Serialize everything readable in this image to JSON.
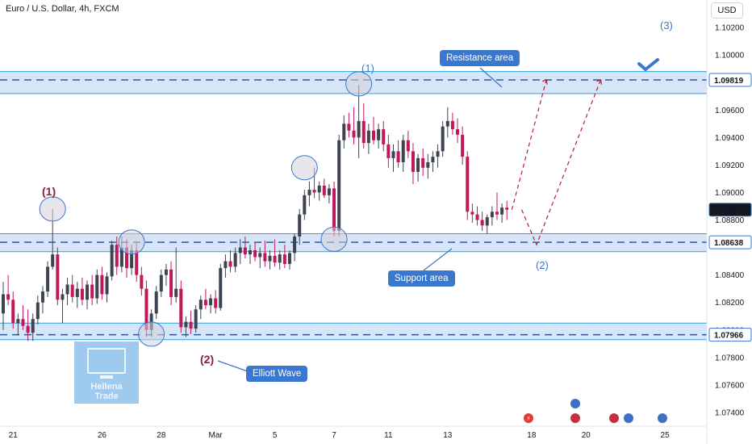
{
  "header": {
    "title": "Euro / U.S. Dollar, 4h, FXCM",
    "currency_button": "USD"
  },
  "colors": {
    "bull": "#26a69a",
    "bear": "#ef5350",
    "candle_up": "#3d4451",
    "candle_down": "#c2185b",
    "zone_fill": "#cfe2f7",
    "zone_line": "#2aa2d6",
    "dash": "#2d5a97",
    "projection": "#b71c3c",
    "callout": "#3a78cf",
    "price_tag": "#3a78cf"
  },
  "chart_data": {
    "type": "candlestick",
    "symbol": "EURUSD",
    "timeframe": "4h",
    "ylim": [
      1.073,
      1.104
    ],
    "y_ticks": [
      "1.10200",
      "1.10000",
      "1.09600",
      "1.09400",
      "1.09200",
      "1.09000",
      "1.08800",
      "1.08400",
      "1.08200",
      "1.08000",
      "1.07800",
      "1.07600",
      "1.07400"
    ],
    "x_ticks": [
      "21",
      "26",
      "28",
      "Mar",
      "5",
      "7",
      "11",
      "13",
      "18",
      "20",
      "25"
    ],
    "price_tags": [
      {
        "value": "1.09819",
        "style": "outline"
      },
      {
        "value": "1.08875",
        "style": "dark"
      },
      {
        "value": "1.08638",
        "style": "outline"
      },
      {
        "value": "1.07966",
        "style": "outline"
      }
    ],
    "zones": [
      {
        "name": "resistance",
        "low": 1.0972,
        "high": 1.0988,
        "level": 1.09819
      },
      {
        "name": "support",
        "low": 1.0857,
        "high": 1.087,
        "level": 1.08638
      },
      {
        "name": "lower",
        "low": 1.0793,
        "high": 1.0805,
        "level": 1.07966
      }
    ],
    "candles": [
      [
        1.0812,
        1.0835,
        1.08,
        1.0826
      ],
      [
        1.0826,
        1.084,
        1.0818,
        1.0822
      ],
      [
        1.0822,
        1.0828,
        1.0801,
        1.0805
      ],
      [
        1.0805,
        1.0812,
        1.0796,
        1.0808
      ],
      [
        1.0808,
        1.0818,
        1.08,
        1.0803
      ],
      [
        1.0803,
        1.0815,
        1.0792,
        1.0798
      ],
      [
        1.0798,
        1.0812,
        1.0792,
        1.0808
      ],
      [
        1.0808,
        1.0825,
        1.0804,
        1.082
      ],
      [
        1.082,
        1.0832,
        1.0812,
        1.0828
      ],
      [
        1.0828,
        1.085,
        1.0824,
        1.0846
      ],
      [
        1.0846,
        1.0888,
        1.0844,
        1.0855
      ],
      [
        1.0855,
        1.086,
        1.0818,
        1.0822
      ],
      [
        1.0822,
        1.083,
        1.0805,
        1.0826
      ],
      [
        1.0826,
        1.0838,
        1.0818,
        1.0833
      ],
      [
        1.0833,
        1.084,
        1.082,
        1.0824
      ],
      [
        1.0824,
        1.0835,
        1.0816,
        1.083
      ],
      [
        1.083,
        1.0838,
        1.0818,
        1.0822
      ],
      [
        1.0822,
        1.0836,
        1.0815,
        1.0833
      ],
      [
        1.0833,
        1.084,
        1.0818,
        1.0823
      ],
      [
        1.0823,
        1.0844,
        1.0819,
        1.084
      ],
      [
        1.084,
        1.0846,
        1.0822,
        1.0826
      ],
      [
        1.0826,
        1.0842,
        1.082,
        1.0839
      ],
      [
        1.0839,
        1.0865,
        1.0836,
        1.0862
      ],
      [
        1.0862,
        1.0868,
        1.084,
        1.0846
      ],
      [
        1.0846,
        1.0868,
        1.0842,
        1.086
      ],
      [
        1.086,
        1.0866,
        1.0838,
        1.0845
      ],
      [
        1.0845,
        1.0862,
        1.084,
        1.0858
      ],
      [
        1.0858,
        1.0864,
        1.0835,
        1.084
      ],
      [
        1.084,
        1.0846,
        1.0825,
        1.083
      ],
      [
        1.083,
        1.0836,
        1.0795,
        1.08
      ],
      [
        1.08,
        1.0815,
        1.0795,
        1.0812
      ],
      [
        1.0812,
        1.0832,
        1.0808,
        1.0828
      ],
      [
        1.0828,
        1.0844,
        1.0824,
        1.084
      ],
      [
        1.084,
        1.0848,
        1.0832,
        1.0844
      ],
      [
        1.0844,
        1.085,
        1.0818,
        1.0824
      ],
      [
        1.0824,
        1.086,
        1.082,
        1.083
      ],
      [
        1.083,
        1.0836,
        1.0798,
        1.0802
      ],
      [
        1.0802,
        1.081,
        1.0795,
        1.0806
      ],
      [
        1.0806,
        1.0814,
        1.0797,
        1.0801
      ],
      [
        1.0801,
        1.0818,
        1.0798,
        1.0815
      ],
      [
        1.0815,
        1.0825,
        1.0808,
        1.0822
      ],
      [
        1.0822,
        1.083,
        1.0815,
        1.0818
      ],
      [
        1.0818,
        1.0826,
        1.0812,
        1.0823
      ],
      [
        1.0823,
        1.0829,
        1.0812,
        1.0816
      ],
      [
        1.0816,
        1.0848,
        1.0814,
        1.0845
      ],
      [
        1.0845,
        1.0855,
        1.0838,
        1.085
      ],
      [
        1.085,
        1.0858,
        1.0842,
        1.0846
      ],
      [
        1.0846,
        1.086,
        1.0842,
        1.0856
      ],
      [
        1.0856,
        1.0866,
        1.0848,
        1.086
      ],
      [
        1.086,
        1.0868,
        1.0852,
        1.0855
      ],
      [
        1.0855,
        1.0862,
        1.0848,
        1.0858
      ],
      [
        1.0858,
        1.0864,
        1.085,
        1.0853
      ],
      [
        1.0853,
        1.086,
        1.0845,
        1.0856
      ],
      [
        1.0856,
        1.0865,
        1.0846,
        1.085
      ],
      [
        1.085,
        1.0858,
        1.0844,
        1.0854
      ],
      [
        1.0854,
        1.0866,
        1.0846,
        1.0849
      ],
      [
        1.0849,
        1.0858,
        1.0844,
        1.0855
      ],
      [
        1.0855,
        1.0862,
        1.0845,
        1.0848
      ],
      [
        1.0848,
        1.0858,
        1.0844,
        1.0856
      ],
      [
        1.0856,
        1.087,
        1.085,
        1.0868
      ],
      [
        1.0868,
        1.0888,
        1.0862,
        1.0884
      ],
      [
        1.0884,
        1.0902,
        1.088,
        1.0898
      ],
      [
        1.0898,
        1.0908,
        1.089,
        1.0902
      ],
      [
        1.0902,
        1.0918,
        1.0896,
        1.09
      ],
      [
        1.09,
        1.0908,
        1.0894,
        1.0905
      ],
      [
        1.0905,
        1.091,
        1.0896,
        1.0898
      ],
      [
        1.0898,
        1.0906,
        1.0892,
        1.0903
      ],
      [
        1.0903,
        1.0908,
        1.0868,
        1.0872
      ],
      [
        1.0872,
        1.0942,
        1.0868,
        1.0938
      ],
      [
        1.0938,
        1.0956,
        1.0932,
        1.095
      ],
      [
        1.095,
        1.0958,
        1.094,
        1.0945
      ],
      [
        1.0945,
        1.0962,
        1.0935,
        1.094
      ],
      [
        1.094,
        1.0978,
        1.0925,
        1.0952
      ],
      [
        1.0952,
        1.0965,
        1.0932,
        1.0936
      ],
      [
        1.0936,
        1.095,
        1.0928,
        1.0945
      ],
      [
        1.0945,
        1.0955,
        1.0935,
        1.0938
      ],
      [
        1.0938,
        1.095,
        1.0932,
        1.0946
      ],
      [
        1.0946,
        1.0952,
        1.093,
        1.0935
      ],
      [
        1.0935,
        1.0942,
        1.0918,
        1.0925
      ],
      [
        1.0925,
        1.0935,
        1.0915,
        1.093
      ],
      [
        1.093,
        1.0938,
        1.0918,
        1.0922
      ],
      [
        1.0922,
        1.0942,
        1.0915,
        1.0938
      ],
      [
        1.0938,
        1.0945,
        1.0925,
        1.093
      ],
      [
        1.093,
        1.0936,
        1.0906,
        1.0915
      ],
      [
        1.0915,
        1.0928,
        1.0908,
        1.0925
      ],
      [
        1.0925,
        1.0932,
        1.0912,
        1.0918
      ],
      [
        1.0918,
        1.0928,
        1.091,
        1.0922
      ],
      [
        1.0922,
        1.093,
        1.0915,
        1.0926
      ],
      [
        1.0926,
        1.0935,
        1.0918,
        1.093
      ],
      [
        1.093,
        1.0952,
        1.0926,
        1.0948
      ],
      [
        1.0948,
        1.0962,
        1.094,
        1.0952
      ],
      [
        1.0952,
        1.0958,
        1.0942,
        1.0946
      ],
      [
        1.0946,
        1.0954,
        1.0936,
        1.0942
      ],
      [
        1.0942,
        1.0948,
        1.092,
        1.0926
      ],
      [
        1.0926,
        1.093,
        1.088,
        1.0886
      ],
      [
        1.0886,
        1.0892,
        1.0878,
        1.0884
      ],
      [
        1.0884,
        1.089,
        1.0876,
        1.088
      ],
      [
        1.088,
        1.0886,
        1.0872,
        1.0876
      ],
      [
        1.0876,
        1.0884,
        1.087,
        1.0882
      ],
      [
        1.0882,
        1.089,
        1.0876,
        1.0886
      ],
      [
        1.0886,
        1.09,
        1.088,
        1.0884
      ],
      [
        1.0884,
        1.0892,
        1.0878,
        1.0889
      ],
      [
        1.0889,
        1.0894,
        1.088,
        1.08875
      ]
    ],
    "projections": [
      {
        "name": "path-1",
        "points": [
          [
            103,
            1.08875
          ],
          [
            110,
            1.0982
          ]
        ]
      },
      {
        "name": "path-2",
        "points": [
          [
            105,
            1.08875
          ],
          [
            108,
            1.0862
          ],
          [
            121,
            1.0982
          ]
        ]
      }
    ],
    "markers": [
      {
        "name": "wave1-left-circle",
        "index": 10,
        "price": 1.0888
      },
      {
        "name": "support-circle-a",
        "index": 26,
        "price": 1.0864
      },
      {
        "name": "wave2-circle",
        "index": 30,
        "price": 1.0797
      },
      {
        "name": "circle-mid",
        "index": 61,
        "price": 1.0918
      },
      {
        "name": "support-circle-b",
        "index": 67,
        "price": 1.0866
      },
      {
        "name": "wave1-top-circle",
        "index": 72,
        "price": 1.0979
      }
    ]
  },
  "annotations": {
    "resistance_label": "Resistance area",
    "support_label": "Support area",
    "elliott_label": "Elliott Wave",
    "wave1_left": "(1)",
    "wave2_left": "(2)",
    "wave1_top": "(1)",
    "wave2_right": "(2)",
    "wave3": "(3)"
  },
  "watermark": {
    "line1": "Hellena",
    "line2": "Trade"
  }
}
